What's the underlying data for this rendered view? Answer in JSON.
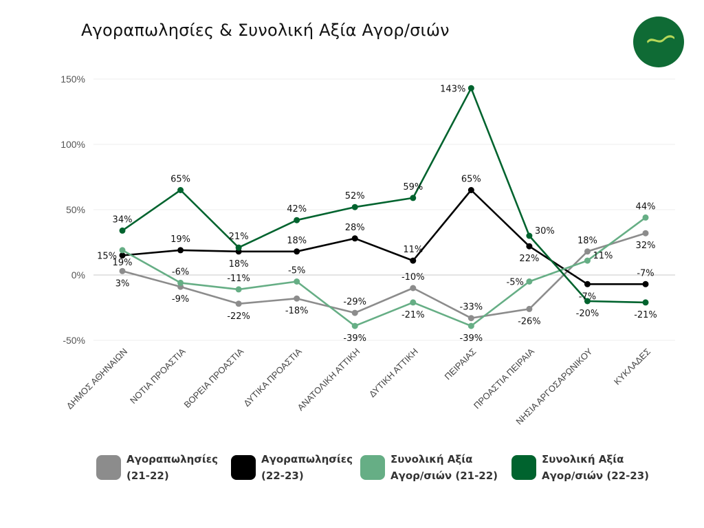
{
  "chart_data": {
    "type": "line",
    "title": "Αγοραπωλησίες & Συνολική Αξία Αγορ/σιών",
    "xlabel": "",
    "ylabel": "",
    "ylim": [
      -50,
      150
    ],
    "yticks": [
      -50,
      0,
      50,
      100,
      150
    ],
    "ytick_labels": [
      "-50%",
      "0%",
      "50%",
      "100%",
      "150%"
    ],
    "grid": true,
    "legend_position": "bottom",
    "categories": [
      "ΔΗΜΟΣ ΑΘΗΝΑΙΩΝ",
      "ΝΟΤΙΑ ΠΡΟΑΣΤΙΑ",
      "ΒΟΡΕΙΑ ΠΡΟΑΣΤΙΑ",
      "ΔΥΤΙΚΑ ΠΡΟΑΣΤΙΑ",
      "ΑΝΑΤΟΛΙΚΗ ΑΤΤΙΚΗ",
      "ΔΥΤΙΚΗ ΑΤΤΙΚΗ",
      "ΠΕΙΡΑΙΑΣ",
      "ΠΡΟΑΣΤΙΑ ΠΕΙΡΑΙΑ",
      "ΝΗΣΙΑ ΑΡΓΟΣΑΡΩΝΙΚΟΥ",
      "ΚΥΚΛΑΔΕΣ"
    ],
    "series": [
      {
        "name": "Αγοραπωλησίες\n(21-22)",
        "color": "#8c8c8c",
        "values": [
          3,
          -9,
          -22,
          -18,
          -29,
          -10,
          -33,
          -26,
          18,
          32
        ],
        "labels": [
          "3%",
          "-9%",
          "-22%",
          "-18%",
          "-29%",
          "-10%",
          "-33%",
          "-26%",
          "18%",
          "32%"
        ],
        "label_pos": [
          "below",
          "below",
          "below",
          "below",
          "above",
          "above",
          "above",
          "below",
          "above",
          "below"
        ]
      },
      {
        "name": "Αγοραπωλησίες\n(22-23)",
        "color": "#000000",
        "values": [
          15,
          19,
          18,
          18,
          28,
          11,
          65,
          22,
          -7,
          -7
        ],
        "labels": [
          "15%",
          "19%",
          "18%",
          "18%",
          "28%",
          "11%",
          "65%",
          "22%",
          "-7%",
          "-7%"
        ],
        "label_pos": [
          "left",
          "above",
          "below",
          "above",
          "above",
          "above",
          "above",
          "below",
          "below",
          "above"
        ]
      },
      {
        "name": "Συνολική Αξία\nΑγορ/σιών (21-22)",
        "color": "#66ae85",
        "values": [
          19,
          -6,
          -11,
          -5,
          -39,
          -21,
          -39,
          -5,
          11,
          44
        ],
        "labels": [
          "19%",
          "-6%",
          "-11%",
          "-5%",
          "-39%",
          "-21%",
          "-39%",
          "-5%",
          "11%",
          "44%"
        ],
        "label_pos": [
          "below",
          "above",
          "above",
          "above",
          "below",
          "below",
          "below",
          "left",
          "right",
          "above"
        ]
      },
      {
        "name": "Συνολική Αξία\nΑγορ/σιών (22-23)",
        "color": "#00632e",
        "values": [
          34,
          65,
          21,
          42,
          52,
          59,
          143,
          30,
          -20,
          -21
        ],
        "labels": [
          "34%",
          "65%",
          "21%",
          "42%",
          "52%",
          "59%",
          "143%",
          "30%",
          "-20%",
          "-21%"
        ],
        "label_pos": [
          "above",
          "above",
          "above",
          "above",
          "above",
          "above",
          "left",
          "right",
          "below",
          "below"
        ]
      }
    ]
  },
  "logo": {
    "name": "brand-logo",
    "circle_color": "#0f6b35",
    "mark_color": "#b7d85a"
  }
}
